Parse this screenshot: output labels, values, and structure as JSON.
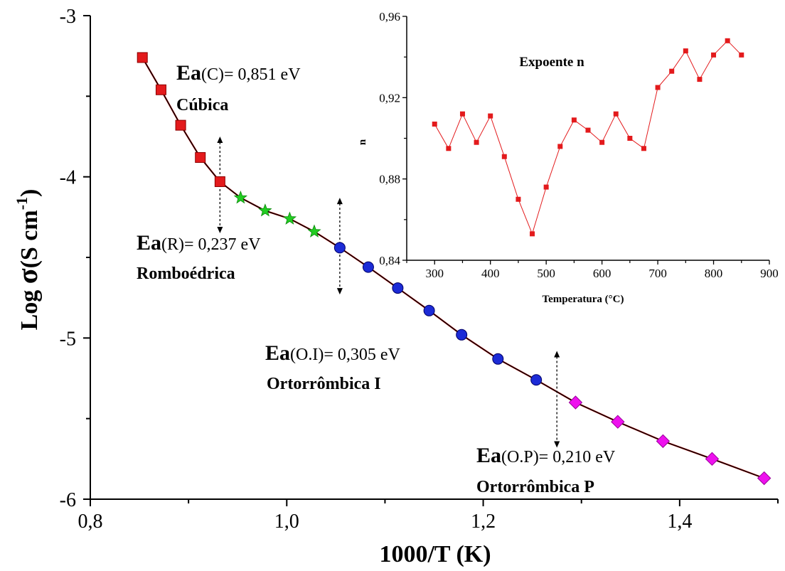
{
  "chart_data": [
    {
      "type": "scatter",
      "xlabel": "1000/T (K)",
      "ylabel_parts": [
        "Log ",
        "σ",
        "(S cm",
        "-1",
        ")"
      ],
      "xlim": [
        0.8,
        1.5
      ],
      "ylim": [
        -6,
        -3
      ],
      "xticks": [
        {
          "v": 0.8,
          "label": "0,8"
        },
        {
          "v": 1.0,
          "label": "1,0"
        },
        {
          "v": 1.2,
          "label": "1,2"
        },
        {
          "v": 1.4,
          "label": "1,4"
        }
      ],
      "yticks": [
        {
          "v": -3,
          "label": "-3"
        },
        {
          "v": -4,
          "label": "-4"
        },
        {
          "v": -5,
          "label": "-5"
        },
        {
          "v": -6,
          "label": "-6"
        }
      ],
      "series": [
        {
          "marker": "square",
          "color": "#e31a1c",
          "x": [
            0.853,
            0.872,
            0.892,
            0.912,
            0.932
          ],
          "y": [
            -3.26,
            -3.46,
            -3.68,
            -3.88,
            -4.03
          ]
        },
        {
          "marker": "star",
          "color": "#22cc22",
          "x": [
            0.953,
            0.978,
            1.003,
            1.028
          ],
          "y": [
            -4.13,
            -4.21,
            -4.26,
            -4.34
          ]
        },
        {
          "marker": "circle",
          "color": "#1c2bd6",
          "x": [
            1.054,
            1.083,
            1.113,
            1.145,
            1.178,
            1.215,
            1.254
          ],
          "y": [
            -4.44,
            -4.56,
            -4.69,
            -4.83,
            -4.98,
            -5.13,
            -5.26
          ]
        },
        {
          "marker": "diamond",
          "color": "#ee11ee",
          "x": [
            1.294,
            1.337,
            1.383,
            1.433,
            1.486
          ],
          "y": [
            -5.4,
            -5.52,
            -5.64,
            -5.75,
            -5.87
          ]
        }
      ],
      "fit_color": "#000000",
      "fit2_color": "#cc0000",
      "arrows": [
        {
          "x": 0.932,
          "y1": -3.75,
          "y2": -4.35
        },
        {
          "x": 1.054,
          "y1": -4.13,
          "y2": -4.73
        },
        {
          "x": 1.275,
          "y1": -5.08,
          "y2": -5.68
        }
      ],
      "annotations": [
        {
          "ea": "Ea",
          "phase": "(C)= 0,851 eV",
          "name": "Cúbica"
        },
        {
          "ea": "Ea",
          "phase": "(R)= 0,237 eV",
          "name": "Romboédrica"
        },
        {
          "ea": "Ea",
          "phase": "(O.I)= 0,305 eV",
          "name": "Ortorrômbica I"
        },
        {
          "ea": "Ea",
          "phase": "(O.P)= 0,210 eV",
          "name": "Ortorrômbica P"
        }
      ]
    },
    {
      "type": "line",
      "title": "Expoente n",
      "xlabel": "Temperatura (°C)",
      "ylabel": "n",
      "xlim": [
        250,
        900
      ],
      "ylim": [
        0.84,
        0.96
      ],
      "xticks": [
        {
          "v": 300,
          "label": "300"
        },
        {
          "v": 400,
          "label": "400"
        },
        {
          "v": 500,
          "label": "500"
        },
        {
          "v": 600,
          "label": "600"
        },
        {
          "v": 700,
          "label": "700"
        },
        {
          "v": 800,
          "label": "800"
        },
        {
          "v": 900,
          "label": "900"
        }
      ],
      "yticks": [
        {
          "v": 0.84,
          "label": "0,84"
        },
        {
          "v": 0.88,
          "label": "0,88"
        },
        {
          "v": 0.92,
          "label": "0,92"
        },
        {
          "v": 0.96,
          "label": "0,96"
        }
      ],
      "color": "#e31a1c",
      "x": [
        300,
        325,
        350,
        375,
        400,
        425,
        450,
        475,
        500,
        525,
        550,
        575,
        600,
        625,
        650,
        675,
        700,
        725,
        750,
        775,
        800,
        825,
        850
      ],
      "y": [
        0.907,
        0.895,
        0.912,
        0.898,
        0.911,
        0.891,
        0.87,
        0.853,
        0.876,
        0.896,
        0.909,
        0.904,
        0.898,
        0.912,
        0.9,
        0.895,
        0.925,
        0.933,
        0.943,
        0.929,
        0.941,
        0.948,
        0.941
      ]
    }
  ]
}
